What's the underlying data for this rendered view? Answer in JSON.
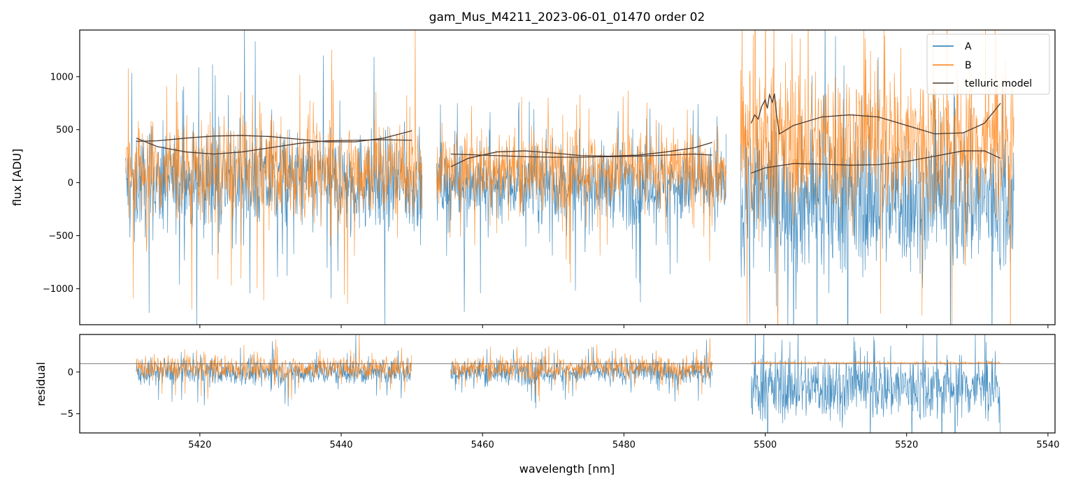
{
  "chart_data": [
    {
      "type": "line",
      "panel": "top",
      "title": "gam_Mus_M4211_2023-06-01_01470  order 02",
      "xlabel": "",
      "ylabel": "flux [ADU]",
      "xlim": [
        5403,
        5541
      ],
      "ylim": [
        -1340,
        1440
      ],
      "yticks": [
        -1000,
        -500,
        0,
        500,
        1000
      ],
      "ytick_labels": [
        "−1000",
        "−500",
        "0",
        "500",
        "1000"
      ],
      "xticks": [
        5420,
        5440,
        5460,
        5480,
        5500,
        5520,
        5540
      ],
      "legend": {
        "placement": "top-right",
        "entries": [
          "A",
          "B",
          "telluric model"
        ]
      },
      "segments": [
        {
          "x_start": 5409.5,
          "x_end": 5451.5
        },
        {
          "x_start": 5453.5,
          "x_end": 5494.5
        },
        {
          "x_start": 5496.5,
          "x_end": 5535.2
        }
      ],
      "series": [
        {
          "name": "A",
          "color": "#1f77b4",
          "noise_profile": [
            {
              "x_start": 5409.5,
              "x_end": 5451.5,
              "center": 0,
              "spread": 420
            },
            {
              "x_start": 5453.5,
              "x_end": 5494.5,
              "center": -20,
              "spread": 330
            },
            {
              "x_start": 5496.5,
              "x_end": 5535.2,
              "center": -150,
              "spread": 620
            }
          ]
        },
        {
          "name": "B",
          "color": "#ff7f0e",
          "noise_profile": [
            {
              "x_start": 5409.5,
              "x_end": 5451.5,
              "center": 120,
              "spread": 430
            },
            {
              "x_start": 5453.5,
              "x_end": 5494.5,
              "center": 130,
              "spread": 320
            },
            {
              "x_start": 5496.5,
              "x_end": 5535.2,
              "center": 380,
              "spread": 650
            }
          ]
        },
        {
          "name": "telluric model",
          "color": "#4d3a2e",
          "curves": [
            {
              "x": [
                5411,
                5414,
                5418,
                5422,
                5426,
                5430,
                5434,
                5438,
                5442,
                5446,
                5450
              ],
              "y": [
                420,
                340,
                290,
                270,
                290,
                330,
                370,
                395,
                400,
                405,
                400
              ]
            },
            {
              "x": [
                5411,
                5414,
                5418,
                5422,
                5426,
                5430,
                5434,
                5438,
                5442,
                5446,
                5450
              ],
              "y": [
                390,
                395,
                420,
                440,
                445,
                435,
                410,
                385,
                385,
                420,
                490
              ]
            },
            {
              "x": [
                5455.5,
                5458,
                5462,
                5466,
                5470,
                5474,
                5478,
                5482,
                5486,
                5490,
                5492.5
              ],
              "y": [
                270,
                265,
                255,
                245,
                240,
                240,
                245,
                250,
                260,
                270,
                260
              ]
            },
            {
              "x": [
                5455.5,
                5458,
                5462,
                5466,
                5470,
                5474,
                5478,
                5482,
                5486,
                5490,
                5492.5
              ],
              "y": [
                150,
                230,
                290,
                300,
                280,
                255,
                250,
                260,
                290,
                330,
                380
              ]
            },
            {
              "x": [
                5498,
                5500,
                5504,
                5508,
                5512,
                5516,
                5520,
                5524,
                5528,
                5531,
                5533.3
              ],
              "y": [
                90,
                140,
                180,
                175,
                165,
                170,
                200,
                250,
                300,
                300,
                230
              ]
            },
            {
              "x": [
                5498,
                5498.5,
                5499,
                5499.5,
                5500,
                5500.3,
                5500.6,
                5501,
                5501.3,
                5501.6,
                5502,
                5504,
                5508,
                5512,
                5516,
                5520,
                5524,
                5528,
                5531,
                5533.3
              ],
              "y": [
                560,
                640,
                600,
                720,
                780,
                700,
                830,
                760,
                840,
                640,
                460,
                540,
                620,
                640,
                620,
                540,
                460,
                470,
                560,
                750
              ]
            }
          ]
        }
      ]
    },
    {
      "type": "line",
      "panel": "bottom",
      "xlabel": "wavelength [nm]",
      "ylabel": "residual",
      "xlim": [
        5403,
        5541
      ],
      "ylim": [
        -7.3,
        4.5
      ],
      "yticks": [
        -5,
        0
      ],
      "ytick_labels": [
        "−5",
        "0"
      ],
      "xticks": [
        5420,
        5440,
        5460,
        5480,
        5500,
        5520,
        5540
      ],
      "xtick_labels": [
        "5420",
        "5440",
        "5460",
        "5480",
        "5500",
        "5520",
        "5540"
      ],
      "reference_line_y": 1,
      "series": [
        {
          "name": "A",
          "color": "#1f77b4",
          "noise_profile": [
            {
              "x_start": 5411,
              "x_end": 5450,
              "center": 0.0,
              "spread": 1.4
            },
            {
              "x_start": 5455.5,
              "x_end": 5492.5,
              "center": 0.0,
              "spread": 1.3
            },
            {
              "x_start": 5498,
              "x_end": 5533.3,
              "center": -1.8,
              "spread": 3.6
            }
          ]
        },
        {
          "name": "B",
          "color": "#ff7f0e",
          "noise_profile": [
            {
              "x_start": 5411,
              "x_end": 5450,
              "center": 0.5,
              "spread": 1.3
            },
            {
              "x_start": 5455.5,
              "x_end": 5492.5,
              "center": 0.5,
              "spread": 1.2
            },
            {
              "x_start": 5498,
              "x_end": 5533.3,
              "center": 1.1,
              "spread": 0.12
            }
          ]
        }
      ]
    }
  ]
}
